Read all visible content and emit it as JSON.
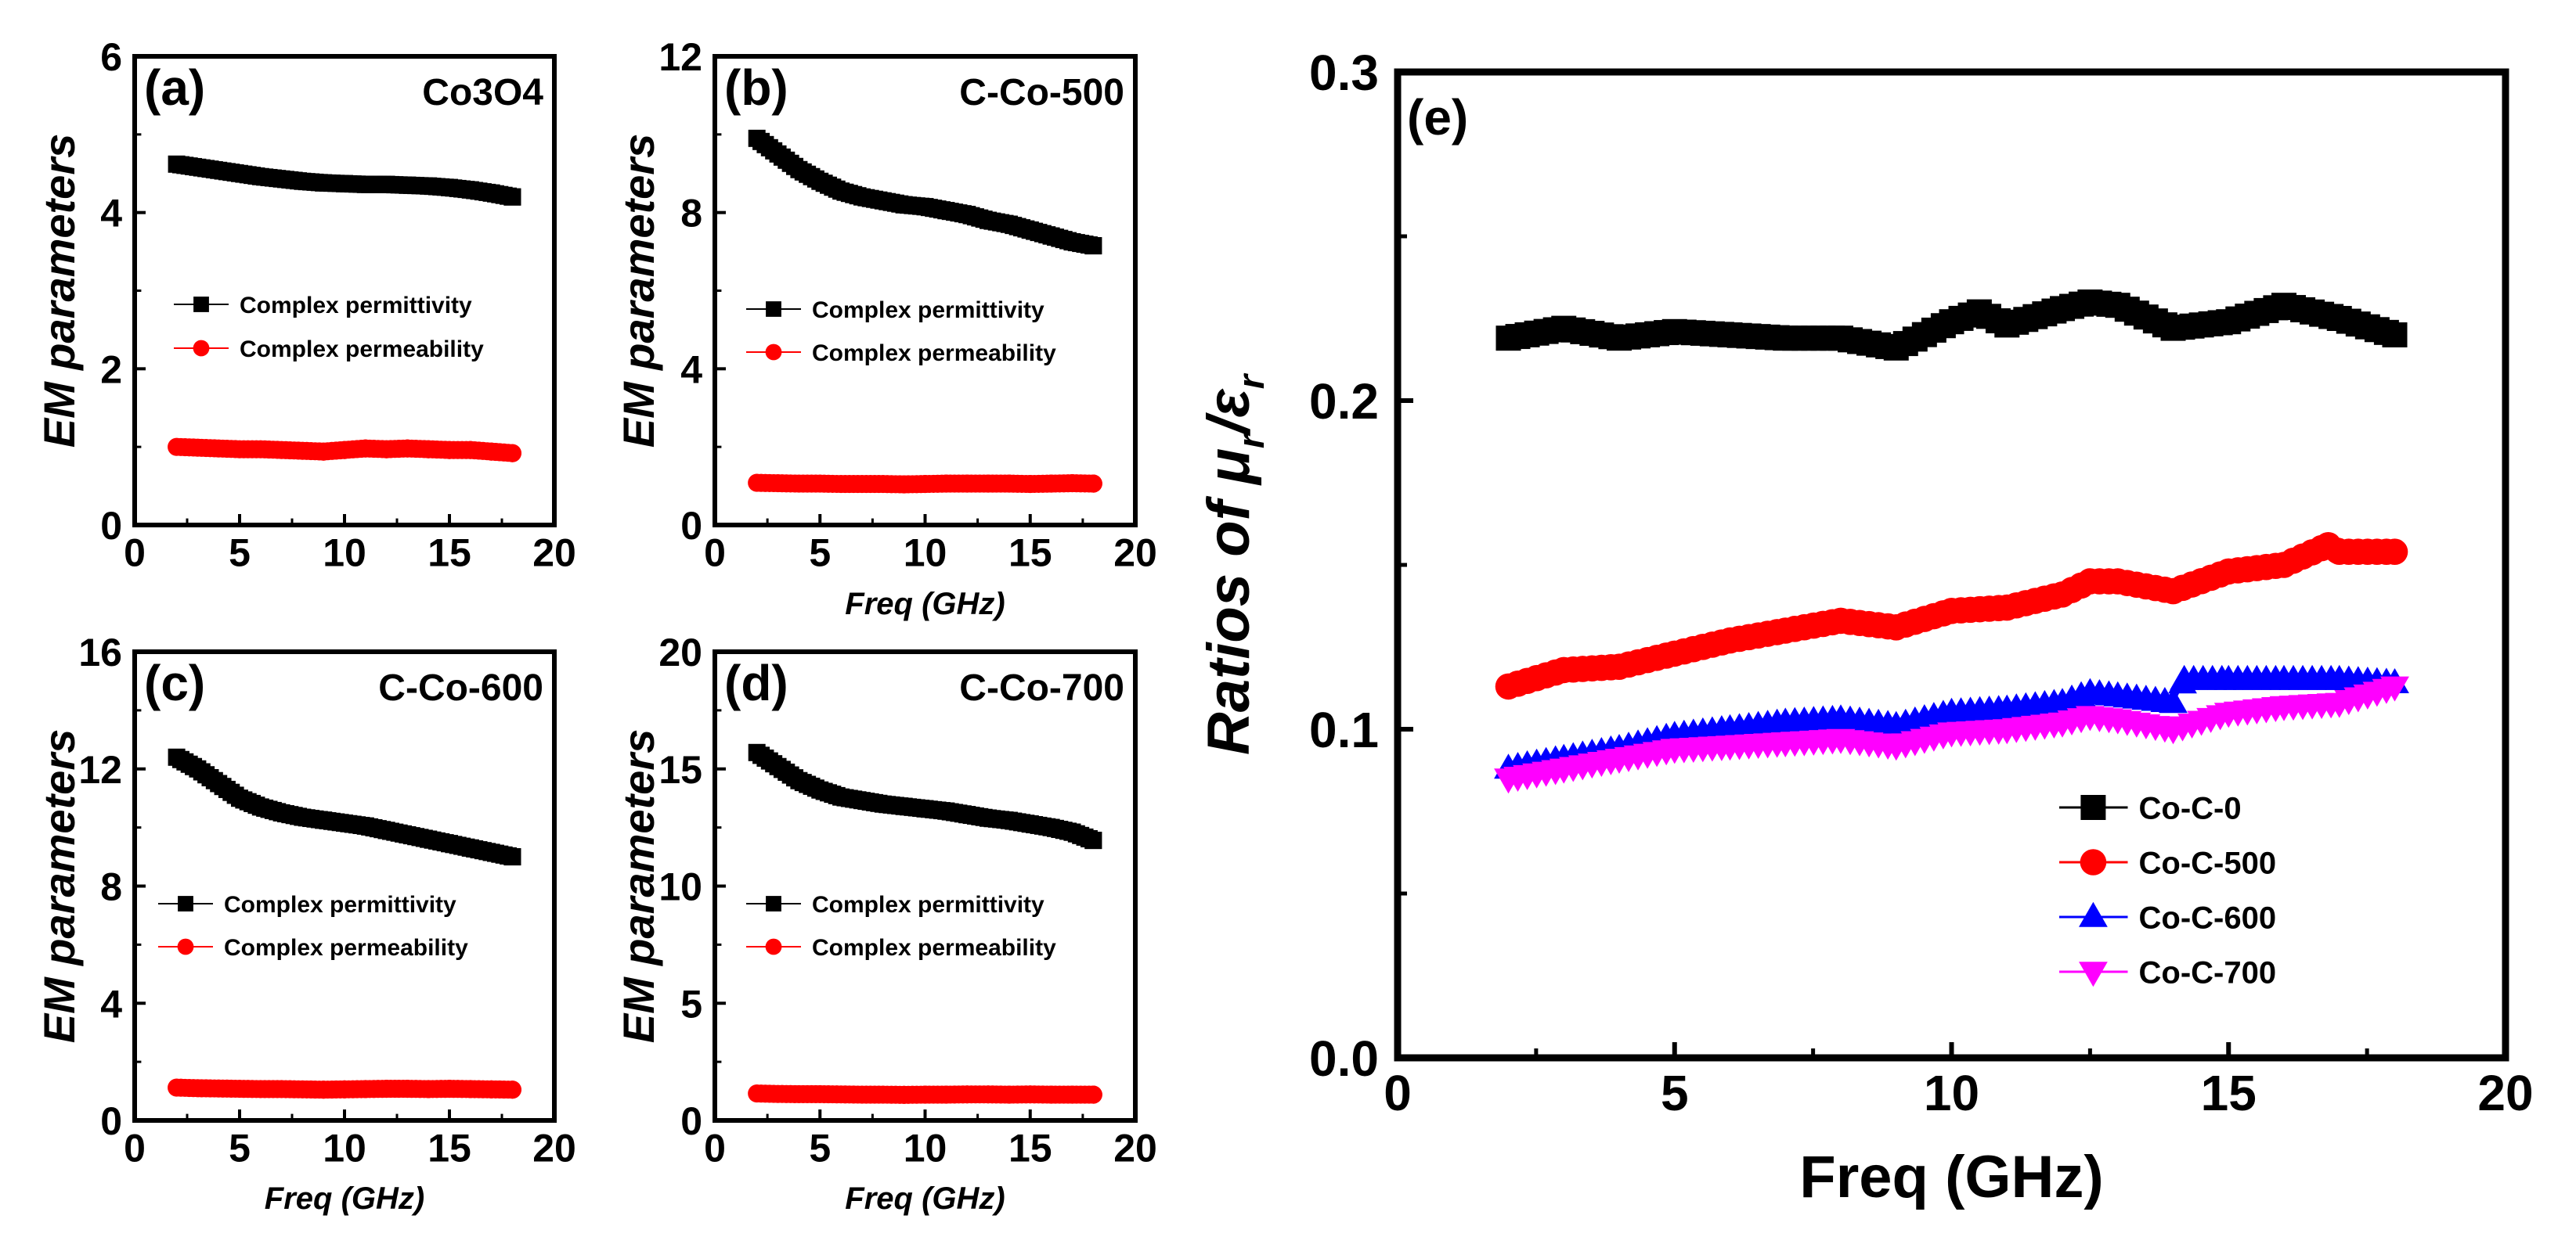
{
  "chart_data": [
    {
      "panel": "(a)",
      "type": "scatter",
      "title": "Co3O4",
      "xlabel": "",
      "ylabel": "EM parameters",
      "xlim": [
        0,
        20
      ],
      "ylim": [
        0,
        6
      ],
      "xticks": [
        0,
        5,
        10,
        15,
        20
      ],
      "yticks": [
        0,
        2,
        4,
        6
      ],
      "legend_position": "center-left",
      "series": [
        {
          "name": "Complex permittivity",
          "color": "#000000",
          "marker": "square",
          "x": [
            2,
            3,
            4,
            5,
            6,
            7,
            8,
            9,
            10,
            11,
            12,
            13,
            14,
            15,
            16,
            17,
            18
          ],
          "y": [
            4.62,
            4.58,
            4.54,
            4.5,
            4.46,
            4.43,
            4.4,
            4.38,
            4.37,
            4.36,
            4.36,
            4.35,
            4.34,
            4.32,
            4.29,
            4.25,
            4.2
          ]
        },
        {
          "name": "Complex permeability",
          "color": "#ff0000",
          "marker": "circle",
          "x": [
            2,
            3,
            4,
            5,
            6,
            7,
            8,
            9,
            10,
            11,
            12,
            13,
            14,
            15,
            16,
            17,
            18
          ],
          "y": [
            1.0,
            0.99,
            0.98,
            0.97,
            0.97,
            0.96,
            0.95,
            0.94,
            0.96,
            0.98,
            0.97,
            0.98,
            0.97,
            0.96,
            0.96,
            0.94,
            0.92
          ]
        }
      ]
    },
    {
      "panel": "(b)",
      "type": "scatter",
      "title": "C-Co-500",
      "xlabel": "Freq (GHz)",
      "ylabel": "EM parameters",
      "xlim": [
        0,
        20
      ],
      "ylim": [
        0,
        12
      ],
      "xticks": [
        0,
        5,
        10,
        15,
        20
      ],
      "yticks": [
        0,
        4,
        8,
        12
      ],
      "legend_position": "center-left",
      "series": [
        {
          "name": "Complex permittivity",
          "color": "#000000",
          "marker": "square",
          "x": [
            2,
            3,
            4,
            5,
            6,
            7,
            8,
            9,
            10,
            11,
            12,
            13,
            14,
            15,
            16,
            17,
            18
          ],
          "y": [
            9.9,
            9.5,
            9.1,
            8.8,
            8.55,
            8.4,
            8.3,
            8.2,
            8.15,
            8.05,
            7.95,
            7.8,
            7.7,
            7.55,
            7.4,
            7.25,
            7.15
          ]
        },
        {
          "name": "Complex permeability",
          "color": "#ff0000",
          "marker": "circle",
          "x": [
            2,
            3,
            4,
            5,
            6,
            7,
            8,
            9,
            10,
            11,
            12,
            13,
            14,
            15,
            16,
            17,
            18
          ],
          "y": [
            1.08,
            1.07,
            1.06,
            1.06,
            1.05,
            1.05,
            1.05,
            1.04,
            1.05,
            1.06,
            1.06,
            1.06,
            1.06,
            1.05,
            1.06,
            1.07,
            1.06
          ]
        }
      ]
    },
    {
      "panel": "(c)",
      "type": "scatter",
      "title": "C-Co-600",
      "xlabel": "Freq (GHz)",
      "ylabel": "EM parameters",
      "xlim": [
        0,
        20
      ],
      "ylim": [
        0,
        16
      ],
      "xticks": [
        0,
        5,
        10,
        15,
        20
      ],
      "yticks": [
        0,
        4,
        8,
        12,
        16
      ],
      "legend_position": "center-left",
      "series": [
        {
          "name": "Complex permittivity",
          "color": "#000000",
          "marker": "square",
          "x": [
            2,
            3,
            4,
            5,
            6,
            7,
            8,
            9,
            10,
            11,
            12,
            13,
            14,
            15,
            16,
            17,
            18
          ],
          "y": [
            12.4,
            12.0,
            11.5,
            11.0,
            10.7,
            10.5,
            10.35,
            10.25,
            10.15,
            10.05,
            9.9,
            9.75,
            9.6,
            9.45,
            9.3,
            9.15,
            9.0
          ]
        },
        {
          "name": "Complex permeability",
          "color": "#ff0000",
          "marker": "circle",
          "x": [
            2,
            3,
            4,
            5,
            6,
            7,
            8,
            9,
            10,
            11,
            12,
            13,
            14,
            15,
            16,
            17,
            18
          ],
          "y": [
            1.12,
            1.1,
            1.09,
            1.08,
            1.07,
            1.07,
            1.06,
            1.05,
            1.06,
            1.07,
            1.08,
            1.08,
            1.07,
            1.08,
            1.07,
            1.06,
            1.05
          ]
        }
      ]
    },
    {
      "panel": "(d)",
      "type": "scatter",
      "title": "C-Co-700",
      "xlabel": "Freq (GHz)",
      "ylabel": "EM parameters",
      "xlim": [
        0,
        20
      ],
      "ylim": [
        0,
        20
      ],
      "xticks": [
        0,
        5,
        10,
        15,
        20
      ],
      "yticks": [
        0,
        5,
        10,
        15,
        20
      ],
      "legend_position": "center-left",
      "series": [
        {
          "name": "Complex permittivity",
          "color": "#000000",
          "marker": "square",
          "x": [
            2,
            3,
            4,
            5,
            6,
            7,
            8,
            9,
            10,
            11,
            12,
            13,
            14,
            15,
            16,
            17,
            18
          ],
          "y": [
            15.7,
            15.1,
            14.5,
            14.1,
            13.8,
            13.65,
            13.5,
            13.4,
            13.3,
            13.2,
            13.05,
            12.9,
            12.8,
            12.65,
            12.5,
            12.3,
            11.95
          ]
        },
        {
          "name": "Complex permeability",
          "color": "#ff0000",
          "marker": "circle",
          "x": [
            2,
            3,
            4,
            5,
            6,
            7,
            8,
            9,
            10,
            11,
            12,
            13,
            14,
            15,
            16,
            17,
            18
          ],
          "y": [
            1.15,
            1.13,
            1.12,
            1.12,
            1.11,
            1.1,
            1.1,
            1.09,
            1.1,
            1.1,
            1.11,
            1.11,
            1.1,
            1.11,
            1.1,
            1.1,
            1.1
          ]
        }
      ]
    },
    {
      "panel": "(e)",
      "type": "scatter",
      "title": "",
      "xlabel": "Freq (GHz)",
      "ylabel_parts": {
        "prefix": "Ratios of ",
        "mu": "μ",
        "eps": "ε",
        "sub": "r",
        "slash": "/"
      },
      "xlim": [
        0,
        20
      ],
      "ylim": [
        0,
        0.3
      ],
      "xticks": [
        0,
        5,
        10,
        15,
        20
      ],
      "yticks": [
        0.0,
        0.1,
        0.2,
        0.3
      ],
      "ytick_labels": [
        "0.0",
        "0.1",
        "0.2",
        "0.3"
      ],
      "legend_position": "bottom-right",
      "series": [
        {
          "name": "Co-C-0",
          "color": "#000000",
          "marker": "square",
          "x": [
            2,
            3,
            4,
            5,
            6,
            7,
            8,
            9,
            10,
            10.5,
            11,
            12,
            12.5,
            13,
            14,
            15,
            16,
            17,
            18
          ],
          "y": [
            0.219,
            0.222,
            0.219,
            0.221,
            0.22,
            0.219,
            0.219,
            0.216,
            0.224,
            0.227,
            0.223,
            0.228,
            0.23,
            0.229,
            0.222,
            0.224,
            0.229,
            0.225,
            0.22
          ]
        },
        {
          "name": "Co-C-500",
          "color": "#ff0000",
          "marker": "circle",
          "x": [
            2,
            3,
            4,
            5,
            6,
            7,
            8,
            9,
            10,
            11,
            12,
            12.5,
            13,
            14,
            15,
            16,
            16.8,
            17,
            18
          ],
          "y": [
            0.113,
            0.118,
            0.119,
            0.123,
            0.127,
            0.13,
            0.133,
            0.131,
            0.136,
            0.137,
            0.141,
            0.145,
            0.145,
            0.142,
            0.148,
            0.15,
            0.156,
            0.154,
            0.154
          ]
        },
        {
          "name": "Co-C-600",
          "color": "#0000ff",
          "marker": "triangle-up",
          "x": [
            2,
            3,
            4,
            5,
            6,
            7,
            8,
            9,
            10,
            11,
            12,
            12.5,
            13,
            14,
            14.2,
            15,
            16,
            17,
            18
          ],
          "y": [
            0.088,
            0.091,
            0.094,
            0.098,
            0.1,
            0.102,
            0.103,
            0.101,
            0.105,
            0.106,
            0.108,
            0.111,
            0.11,
            0.108,
            0.115,
            0.115,
            0.115,
            0.115,
            0.114
          ]
        },
        {
          "name": "Co-C-700",
          "color": "#ff00ff",
          "marker": "triangle-down",
          "x": [
            2,
            3,
            4,
            5,
            6,
            7,
            8,
            9,
            10,
            11,
            12,
            12.5,
            13,
            14,
            15,
            16,
            17,
            18
          ],
          "y": [
            0.085,
            0.088,
            0.091,
            0.094,
            0.095,
            0.096,
            0.097,
            0.095,
            0.099,
            0.1,
            0.102,
            0.104,
            0.103,
            0.1,
            0.105,
            0.107,
            0.108,
            0.113
          ]
        }
      ]
    }
  ]
}
